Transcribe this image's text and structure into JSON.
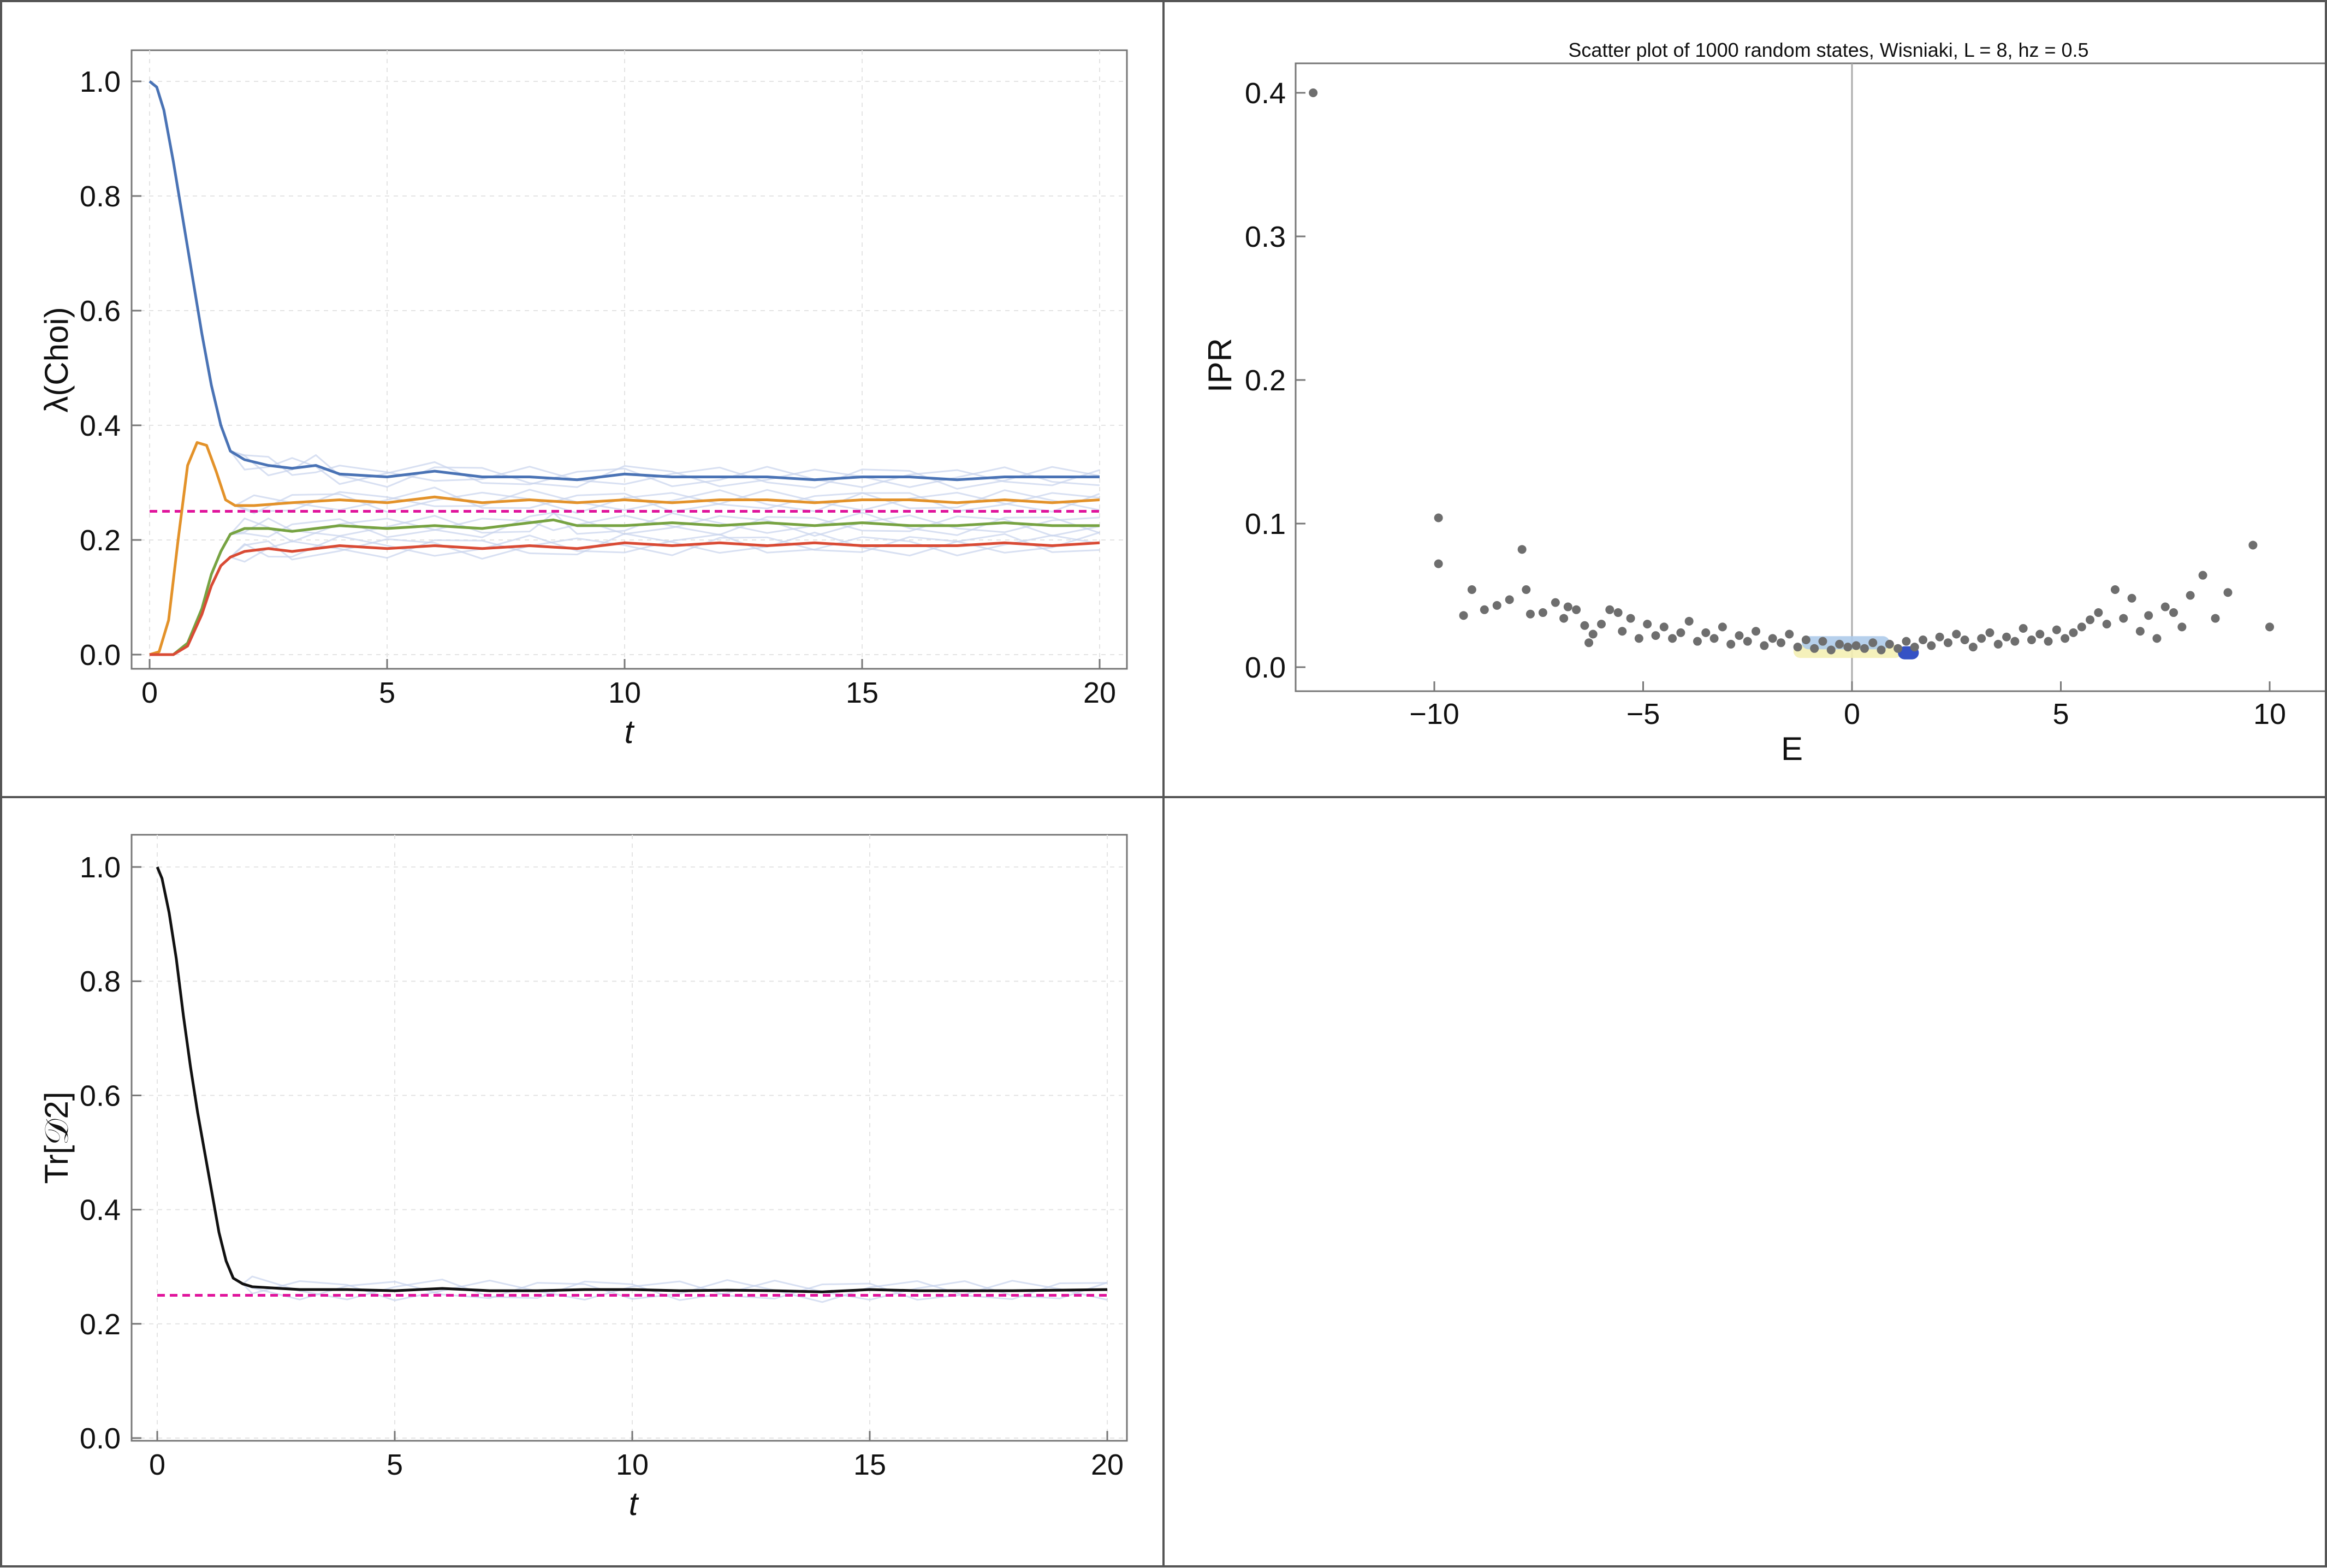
{
  "chart_data": [
    {
      "type": "line",
      "xlabel": "t",
      "ylabel": "λ(Choi)",
      "xlim": [
        0,
        20
      ],
      "ylim": [
        0,
        1.0
      ],
      "x_ticks": [
        "0",
        "5",
        "10",
        "15",
        "20"
      ],
      "y_ticks": [
        "0.0",
        "0.2",
        "0.4",
        "0.6",
        "0.8",
        "1.0"
      ],
      "grid": true,
      "reference_line": {
        "y": 0.25,
        "color": "#e0149c",
        "style": "dashed"
      },
      "series": [
        {
          "color": "#4a73b5",
          "points": [
            [
              0,
              1.0
            ],
            [
              0.15,
              0.99
            ],
            [
              0.3,
              0.95
            ],
            [
              0.5,
              0.86
            ],
            [
              0.7,
              0.76
            ],
            [
              0.9,
              0.66
            ],
            [
              1.1,
              0.56
            ],
            [
              1.3,
              0.47
            ],
            [
              1.5,
              0.4
            ],
            [
              1.7,
              0.355
            ],
            [
              2.0,
              0.34
            ],
            [
              2.5,
              0.33
            ],
            [
              3,
              0.325
            ],
            [
              3.5,
              0.33
            ],
            [
              4,
              0.315
            ],
            [
              5,
              0.31
            ],
            [
              6,
              0.32
            ],
            [
              7,
              0.31
            ],
            [
              8,
              0.31
            ],
            [
              9,
              0.305
            ],
            [
              10,
              0.315
            ],
            [
              11,
              0.31
            ],
            [
              12,
              0.31
            ],
            [
              13,
              0.31
            ],
            [
              14,
              0.305
            ],
            [
              15,
              0.31
            ],
            [
              16,
              0.31
            ],
            [
              17,
              0.305
            ],
            [
              18,
              0.31
            ],
            [
              19,
              0.31
            ],
            [
              20,
              0.31
            ]
          ]
        },
        {
          "color": "#e3922a",
          "points": [
            [
              0,
              0
            ],
            [
              0.2,
              0.005
            ],
            [
              0.4,
              0.06
            ],
            [
              0.6,
              0.2
            ],
            [
              0.8,
              0.33
            ],
            [
              1.0,
              0.37
            ],
            [
              1.2,
              0.365
            ],
            [
              1.4,
              0.32
            ],
            [
              1.6,
              0.27
            ],
            [
              1.8,
              0.26
            ],
            [
              2.2,
              0.26
            ],
            [
              3,
              0.265
            ],
            [
              4,
              0.27
            ],
            [
              5,
              0.265
            ],
            [
              6,
              0.275
            ],
            [
              7,
              0.265
            ],
            [
              8,
              0.27
            ],
            [
              9,
              0.265
            ],
            [
              10,
              0.27
            ],
            [
              11,
              0.265
            ],
            [
              12,
              0.27
            ],
            [
              13,
              0.27
            ],
            [
              14,
              0.265
            ],
            [
              15,
              0.27
            ],
            [
              16,
              0.27
            ],
            [
              17,
              0.265
            ],
            [
              18,
              0.27
            ],
            [
              19,
              0.265
            ],
            [
              20,
              0.27
            ]
          ]
        },
        {
          "color": "#77a342",
          "points": [
            [
              0,
              0
            ],
            [
              0.5,
              0
            ],
            [
              0.8,
              0.02
            ],
            [
              1.1,
              0.08
            ],
            [
              1.3,
              0.14
            ],
            [
              1.5,
              0.18
            ],
            [
              1.7,
              0.21
            ],
            [
              2.0,
              0.22
            ],
            [
              2.5,
              0.22
            ],
            [
              3,
              0.215
            ],
            [
              4,
              0.225
            ],
            [
              5,
              0.22
            ],
            [
              6,
              0.225
            ],
            [
              7,
              0.22
            ],
            [
              8,
              0.23
            ],
            [
              8.5,
              0.235
            ],
            [
              9,
              0.225
            ],
            [
              10,
              0.225
            ],
            [
              11,
              0.23
            ],
            [
              12,
              0.225
            ],
            [
              13,
              0.23
            ],
            [
              14,
              0.225
            ],
            [
              15,
              0.23
            ],
            [
              16,
              0.225
            ],
            [
              17,
              0.225
            ],
            [
              18,
              0.23
            ],
            [
              19,
              0.225
            ],
            [
              20,
              0.225
            ]
          ]
        },
        {
          "color": "#d94b35",
          "points": [
            [
              0,
              0
            ],
            [
              0.5,
              0
            ],
            [
              0.8,
              0.015
            ],
            [
              1.1,
              0.07
            ],
            [
              1.3,
              0.12
            ],
            [
              1.5,
              0.155
            ],
            [
              1.7,
              0.17
            ],
            [
              2.0,
              0.18
            ],
            [
              2.5,
              0.185
            ],
            [
              3,
              0.18
            ],
            [
              4,
              0.19
            ],
            [
              5,
              0.185
            ],
            [
              6,
              0.19
            ],
            [
              7,
              0.185
            ],
            [
              8,
              0.19
            ],
            [
              9,
              0.185
            ],
            [
              10,
              0.195
            ],
            [
              11,
              0.19
            ],
            [
              12,
              0.195
            ],
            [
              13,
              0.19
            ],
            [
              14,
              0.195
            ],
            [
              15,
              0.19
            ],
            [
              16,
              0.19
            ],
            [
              17,
              0.19
            ],
            [
              18,
              0.195
            ],
            [
              19,
              0.19
            ],
            [
              20,
              0.195
            ]
          ]
        }
      ],
      "background_trace_color": "#c7d3ec"
    },
    {
      "type": "scatter",
      "title": "Scatter plot of 1000 random states, Wisniaki, L = 8, hz = 0.5",
      "xlabel": "E",
      "ylabel": "IPR",
      "xlim": [
        -13,
        10.2
      ],
      "ylim": [
        0,
        0.42
      ],
      "x_ticks": [
        "−10",
        "−5",
        "0",
        "5",
        "10"
      ],
      "y_ticks": [
        "0.0",
        "0.1",
        "0.2",
        "0.3",
        "0.4"
      ],
      "grid": false,
      "point_color": "#6e6e6e",
      "points": [
        [
          -12.9,
          0.4
        ],
        [
          -9.9,
          0.104
        ],
        [
          -9.9,
          0.072
        ],
        [
          -9.3,
          0.036
        ],
        [
          -9.1,
          0.054
        ],
        [
          -8.8,
          0.04
        ],
        [
          -8.5,
          0.043
        ],
        [
          -8.2,
          0.047
        ],
        [
          -7.9,
          0.082
        ],
        [
          -7.8,
          0.054
        ],
        [
          -7.7,
          0.037
        ],
        [
          -7.4,
          0.038
        ],
        [
          -7.1,
          0.045
        ],
        [
          -6.9,
          0.034
        ],
        [
          -6.8,
          0.042
        ],
        [
          -6.6,
          0.04
        ],
        [
          -6.4,
          0.029
        ],
        [
          -6.3,
          0.017
        ],
        [
          -6.2,
          0.023
        ],
        [
          -6.0,
          0.03
        ],
        [
          -5.8,
          0.04
        ],
        [
          -5.6,
          0.038
        ],
        [
          -5.5,
          0.025
        ],
        [
          -5.3,
          0.034
        ],
        [
          -5.1,
          0.02
        ],
        [
          -4.9,
          0.03
        ],
        [
          -4.7,
          0.022
        ],
        [
          -4.5,
          0.028
        ],
        [
          -4.3,
          0.02
        ],
        [
          -4.1,
          0.024
        ],
        [
          -3.9,
          0.032
        ],
        [
          -3.7,
          0.018
        ],
        [
          -3.5,
          0.024
        ],
        [
          -3.3,
          0.02
        ],
        [
          -3.1,
          0.028
        ],
        [
          -2.9,
          0.016
        ],
        [
          -2.7,
          0.022
        ],
        [
          -2.5,
          0.018
        ],
        [
          -2.3,
          0.025
        ],
        [
          -2.1,
          0.015
        ],
        [
          -1.9,
          0.02
        ],
        [
          -1.7,
          0.017
        ],
        [
          -1.5,
          0.023
        ],
        [
          -1.3,
          0.014
        ],
        [
          -1.1,
          0.019
        ],
        [
          -0.9,
          0.013
        ],
        [
          -0.7,
          0.018
        ],
        [
          -0.5,
          0.012
        ],
        [
          -0.3,
          0.016
        ],
        [
          -0.1,
          0.014
        ],
        [
          0.1,
          0.015
        ],
        [
          0.3,
          0.013
        ],
        [
          0.5,
          0.017
        ],
        [
          0.7,
          0.012
        ],
        [
          0.9,
          0.016
        ],
        [
          1.1,
          0.013
        ],
        [
          1.3,
          0.018
        ],
        [
          1.5,
          0.014
        ],
        [
          1.7,
          0.019
        ],
        [
          1.9,
          0.015
        ],
        [
          2.1,
          0.021
        ],
        [
          2.3,
          0.017
        ],
        [
          2.5,
          0.023
        ],
        [
          2.7,
          0.019
        ],
        [
          2.9,
          0.014
        ],
        [
          3.1,
          0.02
        ],
        [
          3.3,
          0.024
        ],
        [
          3.5,
          0.016
        ],
        [
          3.7,
          0.021
        ],
        [
          3.9,
          0.018
        ],
        [
          4.1,
          0.027
        ],
        [
          4.3,
          0.019
        ],
        [
          4.5,
          0.023
        ],
        [
          4.7,
          0.018
        ],
        [
          4.9,
          0.026
        ],
        [
          5.1,
          0.02
        ],
        [
          5.3,
          0.024
        ],
        [
          5.5,
          0.028
        ],
        [
          5.7,
          0.033
        ],
        [
          5.9,
          0.038
        ],
        [
          6.1,
          0.03
        ],
        [
          6.3,
          0.054
        ],
        [
          6.5,
          0.034
        ],
        [
          6.7,
          0.048
        ],
        [
          6.9,
          0.025
        ],
        [
          7.1,
          0.036
        ],
        [
          7.3,
          0.02
        ],
        [
          7.5,
          0.042
        ],
        [
          7.7,
          0.038
        ],
        [
          7.9,
          0.028
        ],
        [
          8.1,
          0.05
        ],
        [
          8.4,
          0.064
        ],
        [
          8.7,
          0.034
        ],
        [
          9.0,
          0.052
        ],
        [
          9.6,
          0.085
        ],
        [
          10.0,
          0.028
        ]
      ],
      "overlay_regions": [
        {
          "color": "#f4f0b4",
          "x_range": [
            -1.4,
            1.2
          ],
          "y": 0.011
        },
        {
          "color": "#aecbea",
          "x_range": [
            -1.2,
            0.9
          ],
          "y": 0.017
        },
        {
          "color": "#1f3fbf",
          "x_range": [
            1.1,
            1.6
          ],
          "y": 0.01
        }
      ],
      "vertical_line": {
        "x": 0
      }
    },
    {
      "type": "line",
      "xlabel": "t",
      "ylabel": "Tr[𝒟2]",
      "xlim": [
        0,
        20
      ],
      "ylim": [
        0,
        1.0
      ],
      "x_ticks": [
        "0",
        "5",
        "10",
        "15",
        "20"
      ],
      "y_ticks": [
        "0.0",
        "0.2",
        "0.4",
        "0.6",
        "0.8",
        "1.0"
      ],
      "grid": true,
      "reference_line": {
        "y": 0.25,
        "color": "#e0149c",
        "style": "dashed"
      },
      "series": [
        {
          "color": "#111111",
          "points": [
            [
              0,
              1.0
            ],
            [
              0.1,
              0.98
            ],
            [
              0.25,
              0.92
            ],
            [
              0.4,
              0.84
            ],
            [
              0.55,
              0.74
            ],
            [
              0.7,
              0.65
            ],
            [
              0.85,
              0.57
            ],
            [
              1.0,
              0.5
            ],
            [
              1.15,
              0.43
            ],
            [
              1.3,
              0.36
            ],
            [
              1.45,
              0.31
            ],
            [
              1.6,
              0.28
            ],
            [
              1.8,
              0.27
            ],
            [
              2.0,
              0.265
            ],
            [
              3,
              0.26
            ],
            [
              4,
              0.26
            ],
            [
              5,
              0.258
            ],
            [
              6,
              0.262
            ],
            [
              7,
              0.258
            ],
            [
              8,
              0.258
            ],
            [
              9,
              0.26
            ],
            [
              10,
              0.26
            ],
            [
              11,
              0.258
            ],
            [
              12,
              0.259
            ],
            [
              13,
              0.258
            ],
            [
              14,
              0.256
            ],
            [
              15,
              0.26
            ],
            [
              16,
              0.258
            ],
            [
              17,
              0.258
            ],
            [
              18,
              0.258
            ],
            [
              19,
              0.259
            ],
            [
              20,
              0.26
            ]
          ]
        }
      ],
      "background_trace_color": "#c7d3ec"
    }
  ]
}
